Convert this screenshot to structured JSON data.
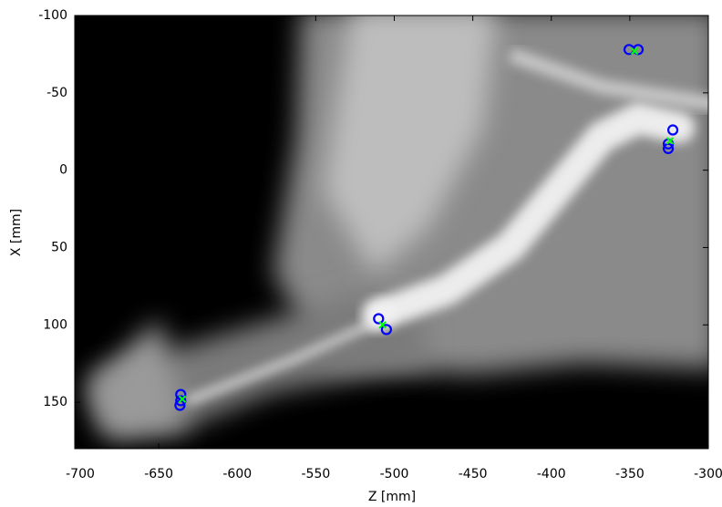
{
  "chart_data": {
    "type": "scatter",
    "xlabel": "Z [mm]",
    "ylabel": "X [mm]",
    "xlim": [
      -703.5,
      -300
    ],
    "xticks": [
      -700,
      -650,
      -600,
      -550,
      -500,
      -450,
      -400,
      -350,
      -300
    ],
    "ylim": [
      -100,
      180
    ],
    "yticks": [
      -100,
      -50,
      0,
      50,
      100,
      150
    ],
    "y_inverted": true,
    "grid": false,
    "series": [
      {
        "marker": "circle",
        "color": "#0000ff",
        "x": [
          -350.5,
          -344.7,
          -322.6,
          -325.5,
          -325.5,
          -510,
          -505,
          -636,
          -636,
          -636.5
        ],
        "values": [
          -78,
          -78,
          -26,
          -17,
          -14,
          96,
          103,
          145,
          149,
          152
        ]
      },
      {
        "marker": "cross",
        "color": "#00ff00",
        "x": [
          -347,
          -324.4,
          -507.5,
          -635
        ],
        "values": [
          -77,
          -19,
          100,
          148
        ]
      }
    ]
  }
}
